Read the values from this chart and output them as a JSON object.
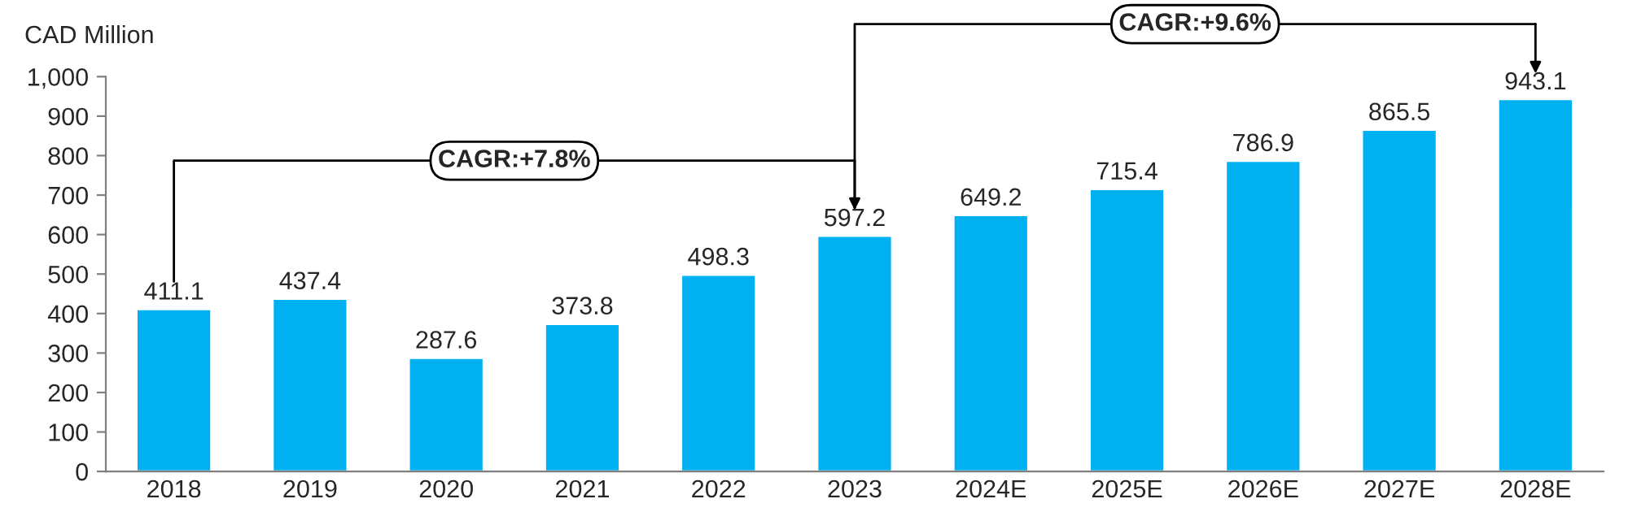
{
  "chart_data": {
    "type": "bar",
    "ylabel": "CAD Million",
    "categories": [
      "2018",
      "2019",
      "2020",
      "2021",
      "2022",
      "2023",
      "2024E",
      "2025E",
      "2026E",
      "2027E",
      "2028E"
    ],
    "values": [
      411.1,
      437.4,
      287.6,
      373.8,
      498.3,
      597.2,
      649.2,
      715.4,
      786.9,
      865.5,
      943.1
    ],
    "color": "#00b0f0",
    "data_labels": true,
    "grid": false,
    "ylim": [
      0,
      1000
    ],
    "yticks": [
      0,
      100,
      200,
      300,
      400,
      500,
      600,
      700,
      800,
      900,
      {
        "value": 1000,
        "label": "1,000"
      }
    ],
    "annotations": [
      "CAGR:+7.8%",
      "CAGR:+9.6%"
    ]
  }
}
